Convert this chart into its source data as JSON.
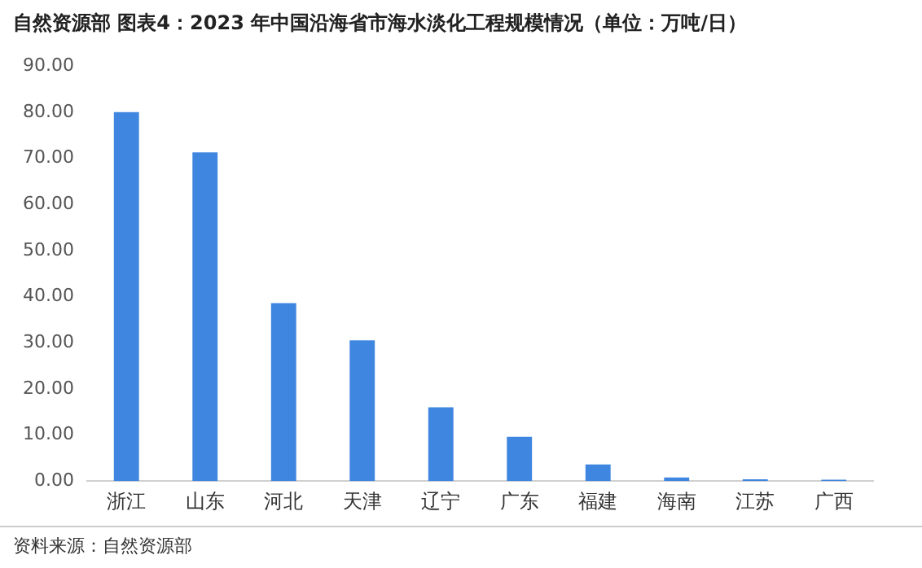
{
  "chart_data": {
    "type": "bar",
    "title": "自然资源部  图表4：2023 年中国沿海省市海水淡化工程规模情况（单位：万吨/日）",
    "categories": [
      "浙江",
      "山东",
      "河北",
      "天津",
      "辽宁",
      "广东",
      "福建",
      "海南",
      "江苏",
      "广西"
    ],
    "values": [
      80.0,
      71.3,
      38.6,
      30.5,
      16.0,
      9.6,
      3.6,
      0.8,
      0.4,
      0.3
    ],
    "color": "#3f86e0",
    "ylim": [
      0,
      90
    ],
    "yticks": [
      {
        "value": 0,
        "label": "0.00"
      },
      {
        "value": 10,
        "label": "10.00"
      },
      {
        "value": 20,
        "label": "20.00"
      },
      {
        "value": 30,
        "label": "30.00"
      },
      {
        "value": 40,
        "label": "40.00"
      },
      {
        "value": 50,
        "label": "50.00"
      },
      {
        "value": 60,
        "label": "60.00"
      },
      {
        "value": 70,
        "label": "70.00"
      },
      {
        "value": 80,
        "label": "80.00"
      },
      {
        "value": 90,
        "label": "90.00"
      }
    ],
    "grid": false,
    "annotations": [
      "资料来源：自然资源部"
    ]
  }
}
